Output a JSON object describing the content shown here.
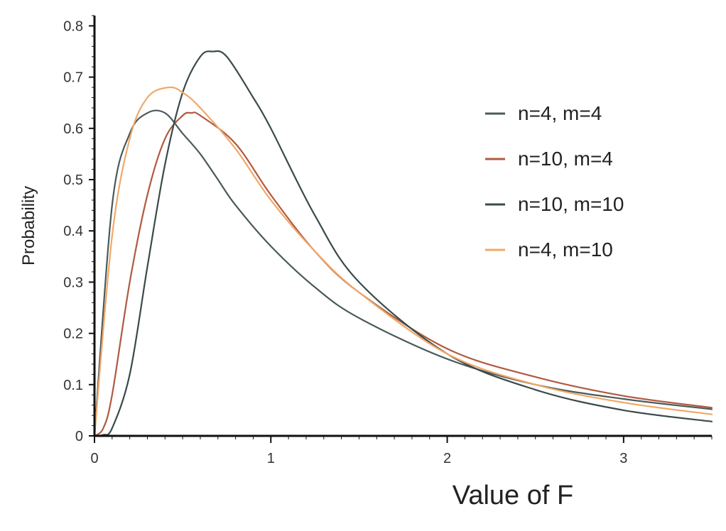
{
  "chart_data": {
    "type": "line",
    "title": "",
    "xlabel": "Value of F",
    "ylabel": "Probability",
    "xlim": [
      0,
      3.5
    ],
    "ylim": [
      0,
      0.82
    ],
    "x_ticks": [
      0,
      1,
      2,
      3
    ],
    "x_tick_labels": [
      "0",
      "1",
      "2",
      "3"
    ],
    "y_ticks": [
      0,
      0.1,
      0.2,
      0.3,
      0.4,
      0.5,
      0.6,
      0.7,
      0.8
    ],
    "y_tick_labels": [
      "0",
      "0.1",
      "0.2",
      "0.3",
      "0.4",
      "0.5",
      "0.6",
      "0.7",
      "0.8"
    ],
    "grid": false,
    "legend_position": "right",
    "series": [
      {
        "name": "n=4, m=4",
        "color": "#4a5a5a",
        "x": [
          0,
          0.1,
          0.2,
          0.3,
          0.4,
          0.5,
          0.6,
          0.7,
          0.8,
          1,
          1.25,
          1.5,
          2,
          2.5,
          3,
          3.5
        ],
        "y": [
          0,
          0.45,
          0.59,
          0.63,
          0.63,
          0.59,
          0.55,
          0.5,
          0.45,
          0.37,
          0.29,
          0.23,
          0.15,
          0.1,
          0.072,
          0.052
        ]
      },
      {
        "name": "n=10, m=4",
        "color": "#b05a40",
        "x": [
          0,
          0.05,
          0.1,
          0.2,
          0.3,
          0.4,
          0.5,
          0.55,
          0.6,
          0.8,
          1,
          1.25,
          1.5,
          2,
          2.5,
          3,
          3.5
        ],
        "y": [
          0,
          0.015,
          0.08,
          0.3,
          0.47,
          0.58,
          0.625,
          0.63,
          0.625,
          0.57,
          0.47,
          0.36,
          0.28,
          0.17,
          0.115,
          0.078,
          0.055
        ]
      },
      {
        "name": "n=10, m=10",
        "color": "#3a4a4a",
        "x": [
          0,
          0.05,
          0.1,
          0.2,
          0.3,
          0.4,
          0.5,
          0.6,
          0.67,
          0.75,
          0.9,
          1,
          1.25,
          1.5,
          2,
          2.5,
          3,
          3.5
        ],
        "y": [
          0,
          0.002,
          0.015,
          0.12,
          0.33,
          0.53,
          0.67,
          0.74,
          0.75,
          0.74,
          0.66,
          0.6,
          0.43,
          0.3,
          0.16,
          0.09,
          0.05,
          0.028
        ]
      },
      {
        "name": "n=4, m=10",
        "color": "#f0a868",
        "x": [
          0,
          0.1,
          0.2,
          0.3,
          0.42,
          0.5,
          0.6,
          0.8,
          1,
          1.25,
          1.5,
          2,
          2.5,
          3,
          3.5
        ],
        "y": [
          0,
          0.39,
          0.58,
          0.66,
          0.68,
          0.67,
          0.64,
          0.56,
          0.46,
          0.36,
          0.28,
          0.16,
          0.1,
          0.065,
          0.042
        ]
      }
    ]
  }
}
